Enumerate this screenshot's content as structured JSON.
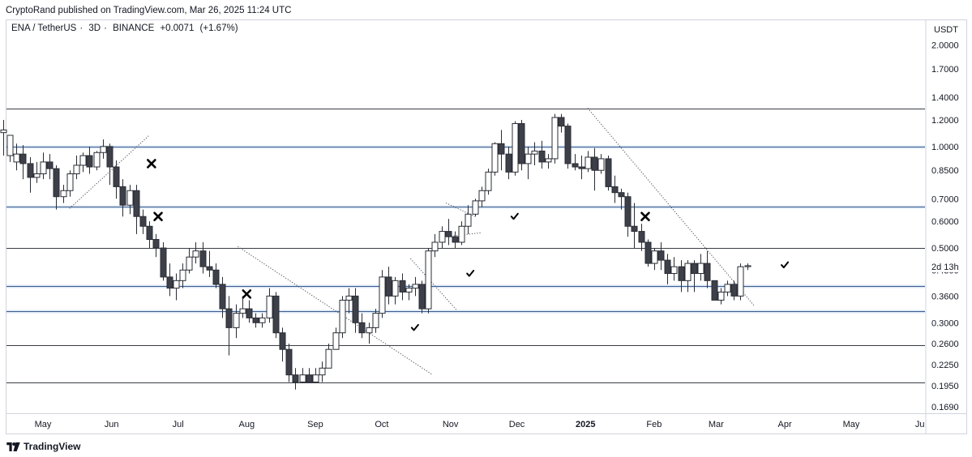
{
  "header": {
    "publisher_text": "CryptoRand published on TradingView.com, Mar 26, 2025 11:24 UTC"
  },
  "symbol": {
    "pair": "ENA / TetherUS",
    "interval": "3D",
    "exchange": "BINANCE",
    "change": "+0.0071",
    "change_pct": "(+1.67%)"
  },
  "footer": {
    "brand": "TradingView"
  },
  "chart_data": {
    "type": "candlestick",
    "y_axis_label": "USDT",
    "y_scale": "log",
    "y_range": [
      0.165,
      2.3
    ],
    "y_ticks": [
      "2.0000",
      "1.7000",
      "1.4000",
      "1.2000",
      "1.0000",
      "0.8500",
      "0.7000",
      "0.6000",
      "0.5000",
      "0.4300",
      "0.3600",
      "0.3000",
      "0.2600",
      "0.2250",
      "0.1950",
      "0.1690"
    ],
    "countdown_label": "2d 13h",
    "x_ticks": [
      {
        "label": "May",
        "date": "2024-05-01",
        "bold": false
      },
      {
        "label": "Jun",
        "date": "2024-06-01",
        "bold": false
      },
      {
        "label": "Jul",
        "date": "2024-07-01",
        "bold": false
      },
      {
        "label": "Aug",
        "date": "2024-08-01",
        "bold": false
      },
      {
        "label": "Sep",
        "date": "2024-09-01",
        "bold": false
      },
      {
        "label": "Oct",
        "date": "2024-10-01",
        "bold": false
      },
      {
        "label": "Nov",
        "date": "2024-11-01",
        "bold": false
      },
      {
        "label": "Dec",
        "date": "2024-12-01",
        "bold": false
      },
      {
        "label": "2025",
        "date": "2025-01-01",
        "bold": true
      },
      {
        "label": "Feb",
        "date": "2025-02-01",
        "bold": false
      },
      {
        "label": "Mar",
        "date": "2025-03-01",
        "bold": false
      },
      {
        "label": "Apr",
        "date": "2025-04-01",
        "bold": false
      },
      {
        "label": "May",
        "date": "2025-05-01",
        "bold": false
      },
      {
        "label": "Ju",
        "date": "2025-06-01",
        "bold": false
      }
    ],
    "first_candle_date": "2024-04-13",
    "candle_interval_days": 3,
    "candles": [
      [
        1.1,
        1.2,
        1.12,
        0.94
      ],
      [
        0.94,
        1.08,
        1.08,
        0.9
      ],
      [
        0.9,
        1.02,
        0.95,
        0.85
      ],
      [
        0.95,
        1.01,
        0.89,
        0.8
      ],
      [
        0.89,
        0.93,
        0.81,
        0.73
      ],
      [
        0.81,
        0.9,
        0.83,
        0.78
      ],
      [
        0.83,
        0.96,
        0.9,
        0.8
      ],
      [
        0.9,
        0.95,
        0.86,
        0.8
      ],
      [
        0.86,
        0.88,
        0.71,
        0.65
      ],
      [
        0.71,
        0.77,
        0.74,
        0.68
      ],
      [
        0.74,
        0.85,
        0.83,
        0.71
      ],
      [
        0.83,
        0.94,
        0.88,
        0.8
      ],
      [
        0.88,
        0.96,
        0.94,
        0.84
      ],
      [
        0.94,
        1.0,
        0.87,
        0.83
      ],
      [
        0.87,
        0.97,
        0.96,
        0.85
      ],
      [
        0.96,
        1.05,
        1.0,
        0.92
      ],
      [
        1.0,
        1.02,
        0.87,
        0.77
      ],
      [
        0.87,
        0.91,
        0.76,
        0.7
      ],
      [
        0.76,
        0.8,
        0.67,
        0.62
      ],
      [
        0.67,
        0.77,
        0.74,
        0.63
      ],
      [
        0.74,
        0.77,
        0.62,
        0.55
      ],
      [
        0.62,
        0.65,
        0.58,
        0.55
      ],
      [
        0.58,
        0.6,
        0.53,
        0.5
      ],
      [
        0.53,
        0.55,
        0.5,
        0.47
      ],
      [
        0.5,
        0.52,
        0.41,
        0.4
      ],
      [
        0.41,
        0.45,
        0.38,
        0.36
      ],
      [
        0.38,
        0.42,
        0.4,
        0.35
      ],
      [
        0.4,
        0.45,
        0.43,
        0.38
      ],
      [
        0.43,
        0.5,
        0.47,
        0.42
      ],
      [
        0.47,
        0.52,
        0.49,
        0.45
      ],
      [
        0.49,
        0.52,
        0.44,
        0.42
      ],
      [
        0.44,
        0.49,
        0.43,
        0.41
      ],
      [
        0.43,
        0.45,
        0.39,
        0.38
      ],
      [
        0.39,
        0.41,
        0.33,
        0.31
      ],
      [
        0.33,
        0.36,
        0.29,
        0.24
      ],
      [
        0.29,
        0.34,
        0.32,
        0.27
      ],
      [
        0.32,
        0.36,
        0.33,
        0.31
      ],
      [
        0.33,
        0.35,
        0.31,
        0.3
      ],
      [
        0.31,
        0.32,
        0.3,
        0.29
      ],
      [
        0.3,
        0.32,
        0.31,
        0.29
      ],
      [
        0.31,
        0.38,
        0.36,
        0.3
      ],
      [
        0.36,
        0.37,
        0.28,
        0.27
      ],
      [
        0.28,
        0.29,
        0.25,
        0.23
      ],
      [
        0.25,
        0.26,
        0.21,
        0.2
      ],
      [
        0.21,
        0.22,
        0.2,
        0.19
      ],
      [
        0.2,
        0.22,
        0.21,
        0.2
      ],
      [
        0.21,
        0.22,
        0.2,
        0.2
      ],
      [
        0.2,
        0.22,
        0.21,
        0.2
      ],
      [
        0.21,
        0.23,
        0.22,
        0.2
      ],
      [
        0.22,
        0.26,
        0.25,
        0.22
      ],
      [
        0.25,
        0.29,
        0.28,
        0.25
      ],
      [
        0.28,
        0.36,
        0.35,
        0.27
      ],
      [
        0.35,
        0.38,
        0.36,
        0.32
      ],
      [
        0.36,
        0.38,
        0.3,
        0.28
      ],
      [
        0.3,
        0.32,
        0.28,
        0.27
      ],
      [
        0.28,
        0.3,
        0.29,
        0.26
      ],
      [
        0.29,
        0.33,
        0.32,
        0.28
      ],
      [
        0.32,
        0.43,
        0.41,
        0.31
      ],
      [
        0.41,
        0.44,
        0.36,
        0.34
      ],
      [
        0.36,
        0.41,
        0.4,
        0.34
      ],
      [
        0.4,
        0.42,
        0.37,
        0.35
      ],
      [
        0.37,
        0.39,
        0.38,
        0.35
      ],
      [
        0.38,
        0.41,
        0.39,
        0.36
      ],
      [
        0.39,
        0.4,
        0.33,
        0.32
      ],
      [
        0.33,
        0.5,
        0.49,
        0.32
      ],
      [
        0.49,
        0.55,
        0.52,
        0.47
      ],
      [
        0.52,
        0.58,
        0.56,
        0.5
      ],
      [
        0.56,
        0.61,
        0.54,
        0.51
      ],
      [
        0.54,
        0.56,
        0.52,
        0.5
      ],
      [
        0.52,
        0.6,
        0.58,
        0.51
      ],
      [
        0.58,
        0.67,
        0.63,
        0.55
      ],
      [
        0.63,
        0.7,
        0.69,
        0.62
      ],
      [
        0.69,
        0.76,
        0.74,
        0.66
      ],
      [
        0.74,
        0.86,
        0.84,
        0.72
      ],
      [
        0.84,
        1.03,
        1.02,
        0.82
      ],
      [
        1.02,
        1.12,
        0.95,
        0.85
      ],
      [
        0.95,
        1.0,
        0.84,
        0.8
      ],
      [
        0.84,
        1.19,
        1.17,
        0.82
      ],
      [
        1.17,
        1.2,
        0.89,
        0.85
      ],
      [
        0.89,
        1.0,
        0.95,
        0.8
      ],
      [
        0.95,
        1.03,
        0.97,
        0.88
      ],
      [
        0.97,
        1.04,
        0.9,
        0.86
      ],
      [
        0.9,
        0.95,
        0.92,
        0.86
      ],
      [
        0.92,
        1.25,
        1.22,
        0.89
      ],
      [
        1.22,
        1.25,
        1.15,
        1.1
      ],
      [
        1.15,
        1.17,
        0.89,
        0.86
      ],
      [
        0.89,
        0.95,
        0.87,
        0.85
      ],
      [
        0.87,
        0.94,
        0.86,
        0.8
      ],
      [
        0.86,
        0.97,
        0.93,
        0.84
      ],
      [
        0.93,
        0.99,
        0.85,
        0.74
      ],
      [
        0.85,
        0.95,
        0.92,
        0.83
      ],
      [
        0.92,
        0.94,
        0.76,
        0.74
      ],
      [
        0.76,
        0.82,
        0.73,
        0.68
      ],
      [
        0.73,
        0.75,
        0.71,
        0.65
      ],
      [
        0.71,
        0.73,
        0.58,
        0.54
      ],
      [
        0.58,
        0.68,
        0.56,
        0.5
      ],
      [
        0.56,
        0.59,
        0.52,
        0.49
      ],
      [
        0.52,
        0.53,
        0.45,
        0.44
      ],
      [
        0.45,
        0.5,
        0.49,
        0.43
      ],
      [
        0.49,
        0.52,
        0.46,
        0.43
      ],
      [
        0.46,
        0.48,
        0.42,
        0.39
      ],
      [
        0.42,
        0.47,
        0.44,
        0.4
      ],
      [
        0.44,
        0.46,
        0.4,
        0.37
      ],
      [
        0.4,
        0.46,
        0.45,
        0.37
      ],
      [
        0.45,
        0.46,
        0.42,
        0.37
      ],
      [
        0.42,
        0.48,
        0.45,
        0.4
      ],
      [
        0.45,
        0.49,
        0.4,
        0.38
      ],
      [
        0.4,
        0.4,
        0.35,
        0.35
      ],
      [
        0.35,
        0.38,
        0.37,
        0.34
      ],
      [
        0.37,
        0.4,
        0.39,
        0.36
      ],
      [
        0.39,
        0.4,
        0.36,
        0.35
      ],
      [
        0.36,
        0.45,
        0.44,
        0.35
      ],
      [
        0.44,
        0.45,
        0.443,
        0.43
      ]
    ],
    "horizontal_levels": [
      {
        "price": 1.3,
        "kind": "line"
      },
      {
        "price": 1.0,
        "kind": "zone"
      },
      {
        "price": 0.665,
        "kind": "zone"
      },
      {
        "price": 0.5,
        "kind": "line"
      },
      {
        "price": 0.385,
        "kind": "zone"
      },
      {
        "price": 0.325,
        "kind": "zone"
      },
      {
        "price": 0.258,
        "kind": "line"
      },
      {
        "price": 0.2,
        "kind": "line"
      }
    ],
    "trendlines": [
      {
        "from": {
          "date": "2024-05-13",
          "price": 0.655
        },
        "to": {
          "date": "2024-06-18",
          "price": 1.08
        }
      },
      {
        "from": {
          "date": "2024-07-28",
          "price": 0.505
        },
        "to": {
          "date": "2024-10-24",
          "price": 0.21
        }
      },
      {
        "from": {
          "date": "2024-10-14",
          "price": 0.465
        },
        "to": {
          "date": "2024-11-04",
          "price": 0.326
        }
      },
      {
        "from": {
          "date": "2024-10-30",
          "price": 0.68
        },
        "to": {
          "date": "2024-11-12",
          "price": 0.62
        }
      },
      {
        "from": {
          "date": "2024-10-30",
          "price": 0.54
        },
        "to": {
          "date": "2024-11-15",
          "price": 0.555
        }
      },
      {
        "from": {
          "date": "2025-01-02",
          "price": 1.3
        },
        "to": {
          "date": "2025-03-18",
          "price": 0.338
        }
      }
    ],
    "markers": [
      {
        "type": "cross",
        "date": "2024-06-19",
        "price": 0.89
      },
      {
        "type": "cross",
        "date": "2024-06-22",
        "price": 0.62
      },
      {
        "type": "cross",
        "date": "2024-08-01",
        "price": 0.365
      },
      {
        "type": "check",
        "date": "2024-10-16",
        "price": 0.29
      },
      {
        "type": "check",
        "date": "2024-11-10",
        "price": 0.42
      },
      {
        "type": "check",
        "date": "2024-11-30",
        "price": 0.62
      },
      {
        "type": "cross",
        "date": "2025-01-28",
        "price": 0.62
      },
      {
        "type": "check",
        "date": "2025-04-01",
        "price": 0.445
      }
    ]
  }
}
